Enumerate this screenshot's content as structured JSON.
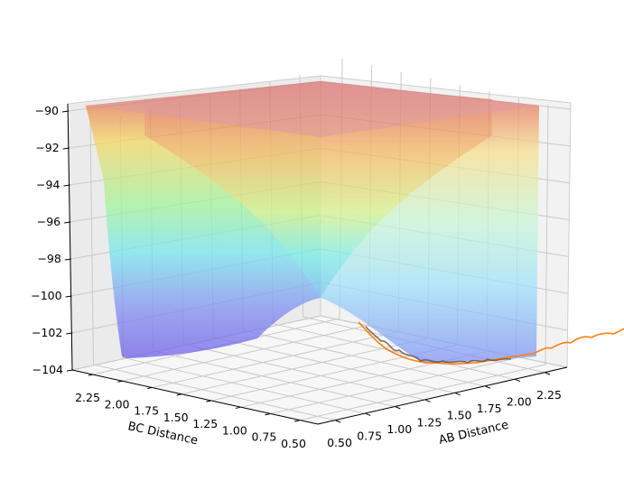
{
  "chart_data": {
    "type": "surface",
    "projection": "3d",
    "title": "",
    "xlabel": "AB Distance",
    "ylabel": "BC Distance",
    "zlabel": "",
    "xlim": [
      0.5,
      2.5
    ],
    "ylim": [
      0.5,
      2.5
    ],
    "zlim": [
      -104,
      -90
    ],
    "x_ticks": [
      "0.50",
      "0.75",
      "1.00",
      "1.25",
      "1.50",
      "1.75",
      "2.00",
      "2.25"
    ],
    "y_ticks": [
      "0.50",
      "0.75",
      "1.00",
      "1.25",
      "1.50",
      "1.75",
      "2.00",
      "2.25"
    ],
    "z_ticks": [
      "−90",
      "−92",
      "−94",
      "−96",
      "−98",
      "−100",
      "−102",
      "−104"
    ],
    "grid": true,
    "colormap": "jet",
    "surface": {
      "description_values": {
        "plateau_energy": -90.4,
        "reactant_valley_floor": -103.5,
        "product_valley_floor": -103.5,
        "saddle_point_energy": -100.6,
        "saddle_point_location": [
          0.95,
          0.95
        ]
      }
    },
    "series": [
      {
        "color": "#ff7f0e",
        "points": [
          {
            "AB": 0.8,
            "BC": 0.95,
            "E": -101.5
          },
          {
            "AB": 1.05,
            "BC": 0.76,
            "E": -103.0
          },
          {
            "AB": 1.3,
            "BC": 0.75,
            "E": -103.5
          },
          {
            "AB": 1.6,
            "BC": 0.74,
            "E": -103.5
          },
          {
            "AB": 1.9,
            "BC": 0.75,
            "E": -103.4
          },
          {
            "AB": 2.2,
            "BC": 0.75,
            "E": -103.3
          },
          {
            "AB": 2.5,
            "BC": 0.75,
            "E": -103.2
          },
          {
            "AB": 2.8,
            "BC": 0.75,
            "E": -103.0
          }
        ]
      }
    ]
  }
}
